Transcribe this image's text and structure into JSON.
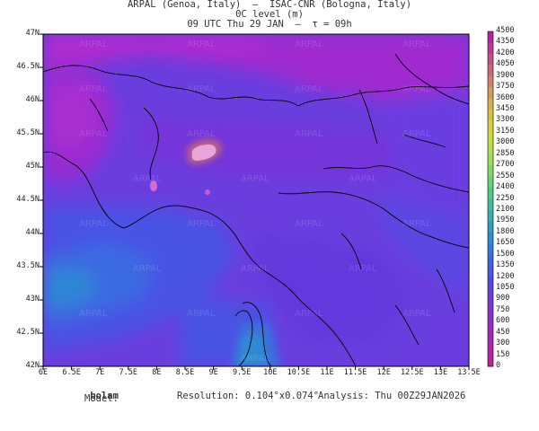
{
  "header": {
    "line1": "ARPAL (Genoa, Italy)  —  ISAC-CNR (Bologna, Italy)",
    "line2": "0C level (m)",
    "line3": "09 UTC Thu 29 JAN  —  τ = 09h"
  },
  "map": {
    "region": "Northern Italy / Western Alps",
    "lon_range": [
      6,
      13.5
    ],
    "lat_range": [
      42,
      47
    ],
    "watermark": "ARPAL"
  },
  "axes": {
    "y_ticks": [
      "47N",
      "46.5N",
      "46N",
      "45.5N",
      "45N",
      "44.5N",
      "44N",
      "43.5N",
      "43N",
      "42.5N",
      "42N"
    ],
    "x_ticks": [
      "6E",
      "6.5E",
      "7E",
      "7.5E",
      "8E",
      "8.5E",
      "9E",
      "9.5E",
      "10E",
      "10.5E",
      "11E",
      "11.5E",
      "12E",
      "12.5E",
      "13E",
      "13.5E"
    ]
  },
  "colorbar": {
    "levels": [
      "4500",
      "4350",
      "4200",
      "4050",
      "3900",
      "3750",
      "3600",
      "3450",
      "3300",
      "3150",
      "3000",
      "2850",
      "2700",
      "2550",
      "2400",
      "2250",
      "2100",
      "1950",
      "1800",
      "1650",
      "1500",
      "1350",
      "1200",
      "1050",
      "900",
      "750",
      "600",
      "450",
      "300",
      "150",
      "0"
    ],
    "colors": [
      "#b81fa8",
      "#c0369a",
      "#c6508a",
      "#cc6a78",
      "#d08466",
      "#d49c56",
      "#d6b048",
      "#d8c23e",
      "#d6d03a",
      "#cadb3e",
      "#b4e048",
      "#98e054",
      "#7edb62",
      "#64d472",
      "#4ecb84",
      "#3fbf98",
      "#35b0ae",
      "#2f9fc2",
      "#2f8bd2",
      "#3578de",
      "#3d66e4",
      "#4956e6",
      "#5a48e4",
      "#6a3ede",
      "#7a36d6",
      "#8a30cc",
      "#9a2ac2",
      "#a826b6",
      "#b622aa",
      "#c0229e"
    ]
  },
  "footer": {
    "model_label": "Model:",
    "model_value": "bolam",
    "resolution_label": "Resolution:",
    "resolution_value": "0.104°x0.074°",
    "analysis_label": "Analysis:",
    "analysis_value": "Thu 00Z29JAN2026"
  }
}
